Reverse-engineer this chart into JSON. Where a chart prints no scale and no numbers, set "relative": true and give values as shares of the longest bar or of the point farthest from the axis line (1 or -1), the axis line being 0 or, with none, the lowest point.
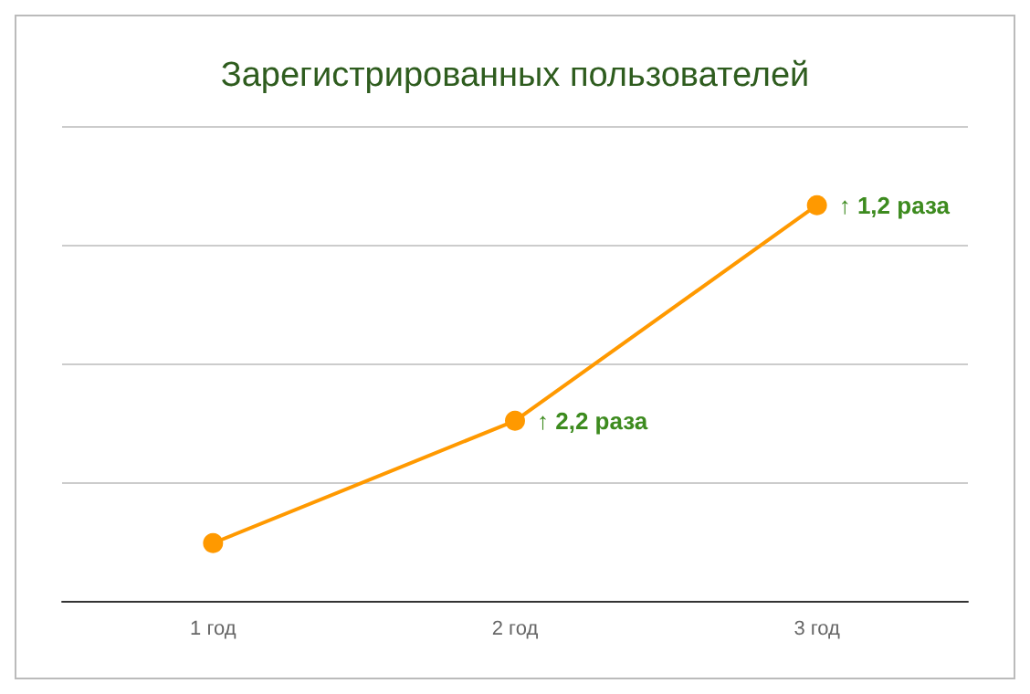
{
  "chart_data": {
    "type": "line",
    "title": "Зарегистрированных пользователей",
    "categories": [
      "1 год",
      "2 год",
      "3 год"
    ],
    "relative": true,
    "series": [
      {
        "color": "#ff9900",
        "values": [
          0.146,
          0.455,
          1
        ]
      }
    ],
    "annotations": [
      {
        "text": "↑ 2,2 раза",
        "x": "2 год",
        "y": 0.455
      },
      {
        "text": "↑ 1,2 раза",
        "x": "3 год",
        "y": 1
      }
    ],
    "grid": "y",
    "marker": "circle",
    "line_style": "solid"
  }
}
